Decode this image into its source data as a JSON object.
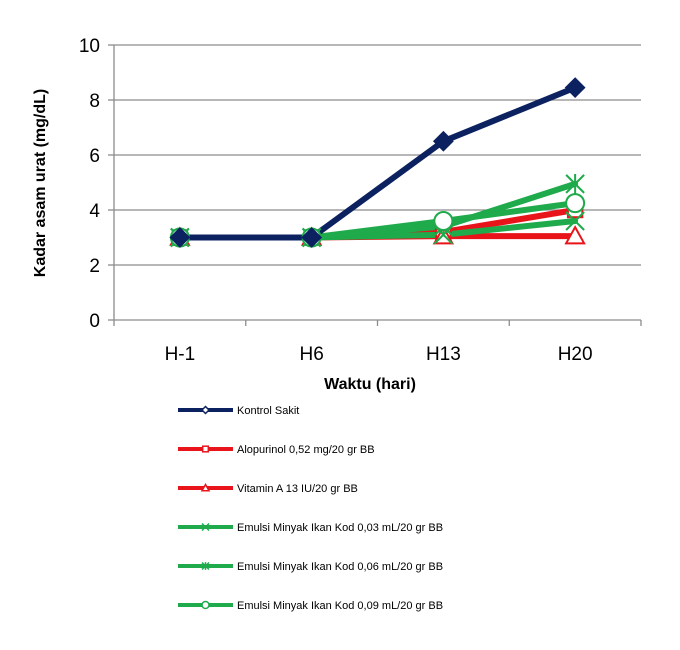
{
  "chart_data": {
    "type": "line",
    "title": "",
    "xlabel": "Waktu (hari)",
    "ylabel": "Kadar asam urat (mg/dL)",
    "categories": [
      "H-1",
      "H6",
      "H13",
      "H20"
    ],
    "ylim": [
      0,
      10
    ],
    "yticks": [
      "0",
      "2",
      "4",
      "6",
      "8",
      "10"
    ],
    "grid": true,
    "legend_position": "bottom",
    "series": [
      {
        "name": "Kontrol Sakit",
        "values": [
          3.0,
          3.0,
          6.5,
          8.45
        ],
        "color": "#0b2160",
        "marker": "diamond"
      },
      {
        "name": "Alopurinol 0,52 mg/20 gr BB",
        "values": [
          3.0,
          3.0,
          3.2,
          4.0
        ],
        "color": "#e8141a",
        "marker": "square"
      },
      {
        "name": "Vitamin A 13 IU/20 gr BB",
        "values": [
          3.0,
          3.0,
          3.05,
          3.05
        ],
        "color": "#e8141a",
        "marker": "triangle"
      },
      {
        "name": "Emulsi Minyak Ikan Kod 0,03 mL/20 gr BB",
        "values": [
          3.0,
          3.0,
          3.1,
          3.6
        ],
        "color": "#1faa4b",
        "marker": "x"
      },
      {
        "name": "Emulsi Minyak Ikan Kod 0,06 mL/20 gr BB",
        "values": [
          3.0,
          3.0,
          3.4,
          4.95
        ],
        "color": "#1faa4b",
        "marker": "star"
      },
      {
        "name": "Emulsi Minyak Ikan Kod 0,09 mL/20 gr BB",
        "values": [
          3.0,
          3.0,
          3.6,
          4.25
        ],
        "color": "#1faa4b",
        "marker": "circle"
      }
    ]
  }
}
